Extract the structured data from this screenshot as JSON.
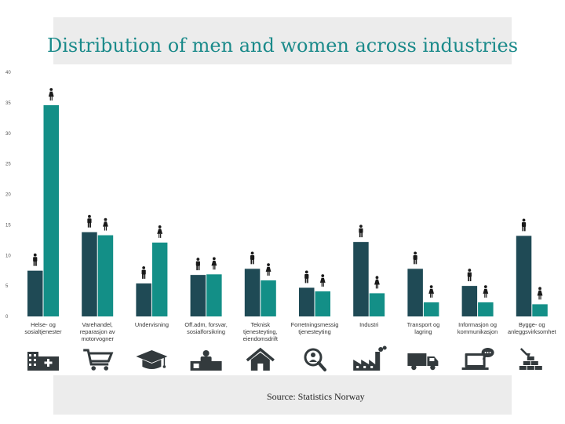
{
  "chart_data": {
    "type": "bar",
    "title": "Distribution of men and women across industries",
    "ylim": [
      0,
      40
    ],
    "yticks": [
      0,
      5,
      10,
      15,
      20,
      25,
      30,
      35,
      40
    ],
    "grid": false,
    "categories": [
      [
        "Helse- og",
        "sosialtjenester"
      ],
      [
        "Varehandel,",
        "reparasjon av",
        "motorvogner"
      ],
      [
        "Undervisning"
      ],
      [
        "Off.adm, forsvar,",
        "sosialforsikring"
      ],
      [
        "Teknisk",
        "tjenesteyting,",
        "eiendomsdrift"
      ],
      [
        "Forretningsmessig",
        "tjenesteyting"
      ],
      [
        "Industri"
      ],
      [
        "Transport og",
        "lagring"
      ],
      [
        "Informasjon og",
        "kommunikasjon"
      ],
      [
        "Bygge- og",
        "anleggsvirksomhet"
      ]
    ],
    "series": [
      {
        "values": [
          7.5,
          13.8,
          5.4,
          6.8,
          7.8,
          4.7,
          12.2,
          7.8,
          5.0,
          13.2
        ],
        "color": "#1f4a55",
        "icon": "male-icon"
      },
      {
        "values": [
          34.6,
          13.3,
          12.1,
          6.9,
          5.9,
          4.1,
          3.8,
          2.3,
          2.3,
          2.0
        ],
        "color": "#138f87",
        "icon": "female-icon"
      }
    ],
    "category_icons": [
      "hospital-icon",
      "shopping-cart-icon",
      "graduation-cap-icon",
      "office-desk-icon",
      "house-icon",
      "person-search-icon",
      "factory-icon",
      "truck-icon",
      "laptop-chat-icon",
      "construction-icon"
    ],
    "source": "Source: Statistics Norway"
  }
}
